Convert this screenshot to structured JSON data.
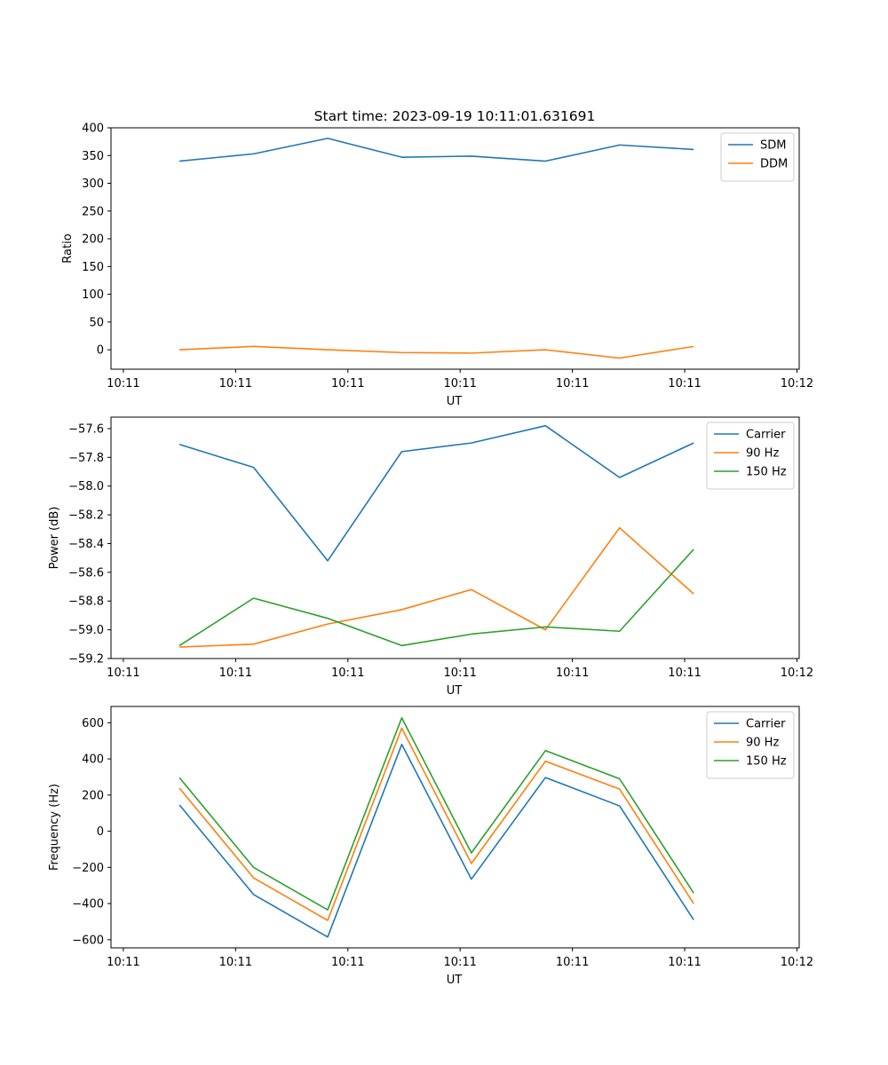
{
  "figure": {
    "title": "Start time: 2023-09-19 10:11:01.631691"
  },
  "chart_data": [
    {
      "type": "line",
      "title": "Start time: 2023-09-19 10:11:01.631691",
      "xlabel": "UT",
      "ylabel": "Ratio",
      "x_tick_labels": [
        "10:11",
        "10:11",
        "10:11",
        "10:11",
        "10:11",
        "10:11",
        "10:12"
      ],
      "x_tick_values": [
        0,
        1,
        2,
        3,
        4,
        5,
        6
      ],
      "xlim": [
        -0.11,
        6.02
      ],
      "x": [
        0.5,
        1.16,
        1.82,
        2.48,
        3.1,
        3.76,
        4.42,
        5.08
      ],
      "ylim": [
        -35,
        400
      ],
      "y_ticks": [
        0,
        50,
        100,
        150,
        200,
        250,
        300,
        350,
        400
      ],
      "legend": "top-right",
      "series": [
        {
          "name": "SDM",
          "color": "#1f77b4",
          "values": [
            340,
            353,
            381,
            347,
            349,
            340,
            369,
            361
          ]
        },
        {
          "name": "DDM",
          "color": "#ff7f0e",
          "values": [
            0,
            6,
            0,
            -5,
            -6,
            0,
            -15,
            6
          ]
        }
      ]
    },
    {
      "type": "line",
      "xlabel": "UT",
      "ylabel": "Power (dB)",
      "x_tick_labels": [
        "10:11",
        "10:11",
        "10:11",
        "10:11",
        "10:11",
        "10:11",
        "10:12"
      ],
      "x_tick_values": [
        0,
        1,
        2,
        3,
        4,
        5,
        6
      ],
      "xlim": [
        -0.11,
        6.02
      ],
      "x": [
        0.5,
        1.16,
        1.82,
        2.48,
        3.1,
        3.76,
        4.42,
        5.08
      ],
      "ylim": [
        -59.2,
        -57.52
      ],
      "y_ticks": [
        -59.2,
        -59.0,
        -58.8,
        -58.6,
        -58.4,
        -58.2,
        -58.0,
        -57.8,
        -57.6
      ],
      "y_tick_labels": [
        "−59.2",
        "−59.0",
        "−58.8",
        "−58.6",
        "−58.4",
        "−58.2",
        "−58.0",
        "−57.8",
        "−57.6"
      ],
      "legend": "top-right",
      "series": [
        {
          "name": "Carrier",
          "color": "#1f77b4",
          "values": [
            -57.71,
            -57.87,
            -58.52,
            -57.76,
            -57.7,
            -57.58,
            -57.94,
            -57.7
          ]
        },
        {
          "name": "90 Hz",
          "color": "#ff7f0e",
          "values": [
            -59.12,
            -59.1,
            -58.96,
            -58.86,
            -58.72,
            -59.0,
            -58.29,
            -58.75
          ]
        },
        {
          "name": "150 Hz",
          "color": "#2ca02c",
          "values": [
            -59.11,
            -58.78,
            -58.92,
            -59.11,
            -59.03,
            -58.98,
            -59.01,
            -58.44
          ]
        }
      ]
    },
    {
      "type": "line",
      "xlabel": "UT",
      "ylabel": "Frequency (Hz)",
      "x_tick_labels": [
        "10:11",
        "10:11",
        "10:11",
        "10:11",
        "10:11",
        "10:11",
        "10:12"
      ],
      "x_tick_values": [
        0,
        1,
        2,
        3,
        4,
        5,
        6
      ],
      "xlim": [
        -0.11,
        6.02
      ],
      "x": [
        0.5,
        1.16,
        1.82,
        2.48,
        3.1,
        3.76,
        4.42,
        5.08
      ],
      "ylim": [
        -645,
        690
      ],
      "y_ticks": [
        -600,
        -400,
        -200,
        0,
        200,
        400,
        600
      ],
      "y_tick_labels": [
        "−600",
        "−400",
        "−200",
        "0",
        "200",
        "400",
        "600"
      ],
      "legend": "top-right",
      "series": [
        {
          "name": "Carrier",
          "color": "#1f77b4",
          "values": [
            145,
            -350,
            -585,
            480,
            -265,
            297,
            140,
            -490
          ]
        },
        {
          "name": "90 Hz",
          "color": "#ff7f0e",
          "values": [
            238,
            -258,
            -493,
            570,
            -178,
            387,
            233,
            -400
          ]
        },
        {
          "name": "150 Hz",
          "color": "#2ca02c",
          "values": [
            296,
            -200,
            -435,
            627,
            -120,
            446,
            290,
            -342
          ]
        }
      ]
    }
  ]
}
